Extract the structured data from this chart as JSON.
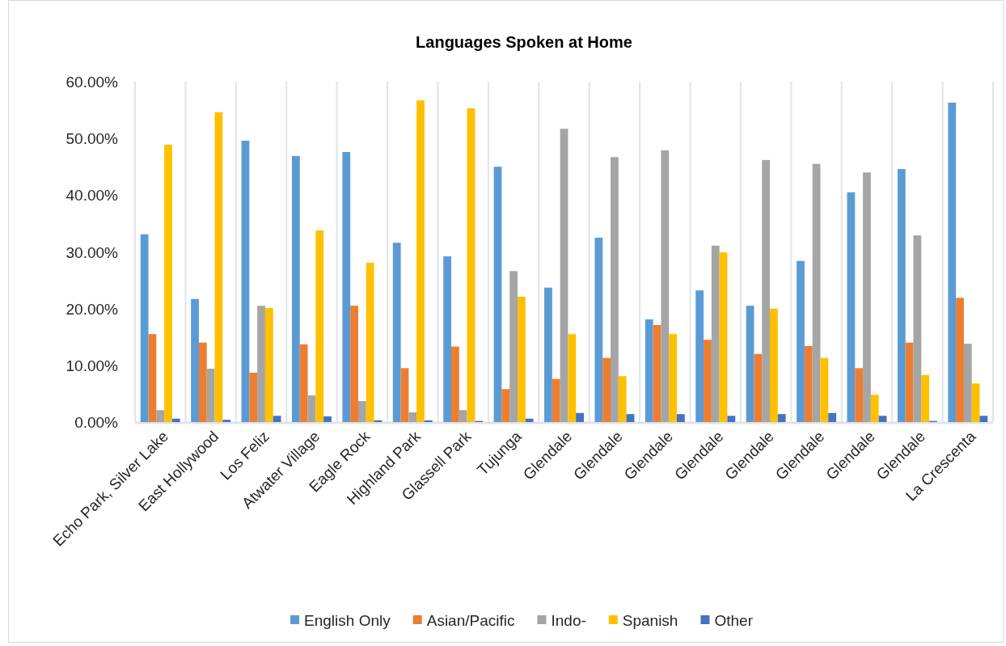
{
  "chart_data": {
    "type": "bar",
    "title": "Languages Spoken at Home",
    "categories": [
      "Echo Park, Silver Lake",
      "East Hollywood",
      "Los Feliz",
      "Atwater Village",
      "Eagle Rock",
      "Highland Park",
      "Glassell Park",
      "Tujunga",
      "Glendale",
      "Glendale",
      "Glendale",
      "Glendale",
      "Glendale",
      "Glendale",
      "Glendale",
      "Glendale",
      "La Crescenta"
    ],
    "series": [
      {
        "name": "English Only",
        "color": "#5b9bd5",
        "values": [
          33.1,
          21.7,
          49.6,
          46.9,
          47.6,
          31.6,
          29.2,
          45.0,
          23.7,
          32.5,
          18.1,
          23.2,
          20.5,
          28.4,
          40.5,
          44.6,
          56.3
        ]
      },
      {
        "name": "Asian/Pacific",
        "color": "#ed7d31",
        "values": [
          15.5,
          14.0,
          8.7,
          13.7,
          20.5,
          9.5,
          13.3,
          5.8,
          7.6,
          11.3,
          17.1,
          14.5,
          12.0,
          13.4,
          9.5,
          14.0,
          21.9
        ]
      },
      {
        "name": "Indo-",
        "color": "#a5a5a5",
        "values": [
          2.1,
          9.4,
          20.5,
          4.7,
          3.7,
          1.7,
          2.1,
          26.6,
          51.7,
          46.7,
          47.9,
          31.1,
          46.2,
          45.5,
          44.0,
          32.9,
          13.8
        ]
      },
      {
        "name": "Spanish",
        "color": "#ffc000",
        "values": [
          48.9,
          54.6,
          20.1,
          33.8,
          28.1,
          56.7,
          55.3,
          22.1,
          15.5,
          8.1,
          15.5,
          29.9,
          20.0,
          11.3,
          4.8,
          8.3,
          6.8
        ]
      },
      {
        "name": "Other",
        "color": "#4472c4",
        "values": [
          0.6,
          0.4,
          1.1,
          1.0,
          0.3,
          0.3,
          0.2,
          0.6,
          1.6,
          1.4,
          1.4,
          1.1,
          1.4,
          1.6,
          1.1,
          0.2,
          1.1
        ]
      }
    ],
    "ylim": [
      0,
      60
    ],
    "yticks": [
      {
        "value": 0,
        "label": "0.00%"
      },
      {
        "value": 10,
        "label": "10.00%"
      },
      {
        "value": 20,
        "label": "20.00%"
      },
      {
        "value": 30,
        "label": "30.00%"
      },
      {
        "value": 40,
        "label": "40.00%"
      },
      {
        "value": 50,
        "label": "50.00%"
      },
      {
        "value": 60,
        "label": "60.00%"
      }
    ],
    "grid": "x",
    "legend": "bottom"
  }
}
